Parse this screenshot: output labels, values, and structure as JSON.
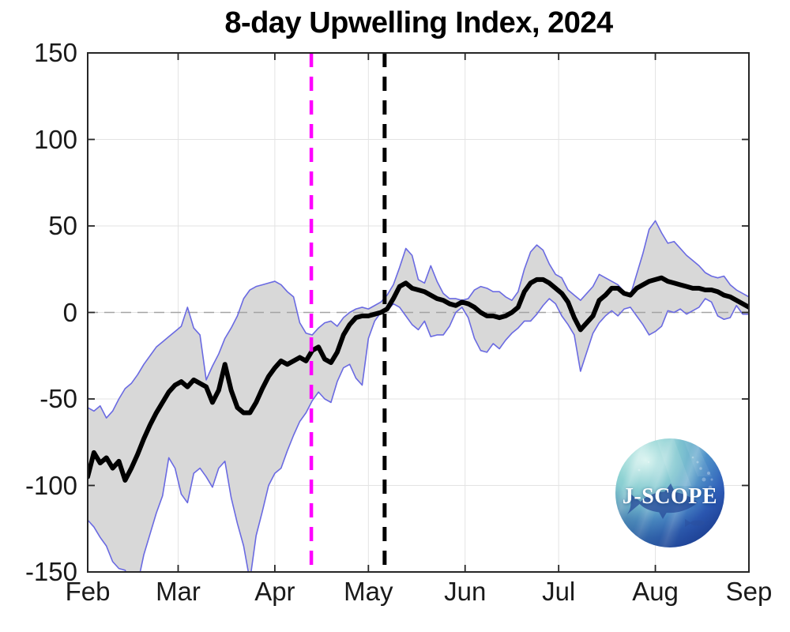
{
  "title": "8-day Upwelling Index, 2024",
  "logo": {
    "text": "J-SCOPE"
  },
  "axes": {
    "ylim": [
      -150,
      150
    ],
    "yticks": [
      150,
      100,
      50,
      0,
      -50,
      -100,
      -150
    ],
    "ytick_labels": [
      "150",
      "100",
      "50",
      "0",
      "-50",
      "-100",
      "-150"
    ],
    "xtick_labels": [
      "Feb",
      "Mar",
      "Apr",
      "May",
      "Jun",
      "Jul",
      "Aug",
      "Sep"
    ],
    "xtick_days": [
      0,
      29,
      60,
      90,
      121,
      151,
      182,
      212
    ]
  },
  "chart_data": {
    "type": "line",
    "title": "8-day Upwelling Index, 2024",
    "xlabel": "",
    "ylabel": "",
    "x_unit": "days since Feb 1, 2024",
    "x_start_day": 0,
    "x_step_days": 2,
    "x_range_days": [
      0,
      212
    ],
    "ylim": [
      -150,
      150
    ],
    "grid": true,
    "band_fill_color": "#d8d8d8",
    "series": [
      {
        "name": "ensemble-mean",
        "color": "#000000",
        "width": 6,
        "values": [
          -95,
          -81,
          -87,
          -84,
          -90,
          -86,
          -97,
          -90,
          -82,
          -73,
          -65,
          -58,
          -52,
          -46,
          -42,
          -40,
          -43,
          -39,
          -41,
          -43,
          -52,
          -45,
          -30,
          -45,
          -55,
          -58,
          -58,
          -52,
          -44,
          -37,
          -32,
          -28,
          -30,
          -28,
          -26,
          -28,
          -22,
          -20,
          -27,
          -29,
          -23,
          -13,
          -7,
          -3,
          -2,
          -2,
          -1,
          0,
          2,
          8,
          15,
          17,
          14,
          13,
          12,
          10,
          8,
          7,
          5,
          4,
          6,
          5,
          3,
          0,
          -2,
          -2,
          -3,
          -2,
          0,
          3,
          12,
          17,
          19,
          19,
          17,
          14,
          11,
          6,
          -3,
          -10,
          -6,
          -2,
          7,
          10,
          14,
          14,
          11,
          10,
          14,
          16,
          18,
          19,
          20,
          18,
          17,
          16,
          15,
          14,
          14,
          13,
          13,
          12,
          10,
          9,
          7,
          5,
          3
        ]
      },
      {
        "name": "envelope-upper",
        "color": "#6a6ae2",
        "width": 1.6,
        "values": [
          -55,
          -57,
          -54,
          -61,
          -57,
          -50,
          -44,
          -41,
          -36,
          -30,
          -25,
          -20,
          -17,
          -14,
          -11,
          -8,
          3,
          -9,
          -13,
          -39,
          -31,
          -24,
          -15,
          -9,
          -2,
          8,
          13,
          15,
          16,
          17,
          18,
          16,
          12,
          9,
          -6,
          -12,
          -13,
          -9,
          -6,
          -5,
          -8,
          -3,
          0,
          2,
          3,
          2,
          4,
          6,
          10,
          16,
          26,
          37,
          33,
          19,
          17,
          27,
          18,
          11,
          8,
          8,
          7,
          8,
          13,
          15,
          14,
          12,
          12,
          9,
          7,
          12,
          25,
          35,
          39,
          36,
          28,
          22,
          20,
          13,
          10,
          7,
          11,
          15,
          22,
          20,
          18,
          16,
          12,
          10,
          22,
          34,
          48,
          53,
          46,
          40,
          41,
          37,
          33,
          30,
          27,
          23,
          21,
          20,
          21,
          16,
          13,
          11,
          9
        ]
      },
      {
        "name": "envelope-lower",
        "color": "#6a6ae2",
        "width": 1.6,
        "values": [
          -120,
          -124,
          -130,
          -135,
          -144,
          -148,
          -149,
          -158,
          -157,
          -140,
          -128,
          -116,
          -106,
          -84,
          -90,
          -105,
          -110,
          -93,
          -90,
          -95,
          -101,
          -90,
          -86,
          -107,
          -122,
          -135,
          -155,
          -129,
          -115,
          -100,
          -93,
          -90,
          -80,
          -71,
          -63,
          -58,
          -51,
          -46,
          -50,
          -52,
          -40,
          -32,
          -30,
          -38,
          -42,
          -15,
          -5,
          0,
          1,
          5,
          3,
          -2,
          -7,
          -10,
          -5,
          -14,
          -13,
          -13,
          -8,
          0,
          3,
          -3,
          -15,
          -22,
          -23,
          -18,
          -21,
          -16,
          -12,
          -9,
          -5,
          -5,
          -1,
          4,
          8,
          5,
          -2,
          -7,
          -13,
          -34,
          -23,
          -12,
          -6,
          -2,
          1,
          -2,
          2,
          3,
          -2,
          -7,
          -13,
          -11,
          -8,
          1,
          0,
          2,
          -1,
          1,
          3,
          8,
          6,
          -2,
          -4,
          -3,
          4,
          -1,
          -1
        ]
      }
    ],
    "hlines": [
      {
        "y": 0,
        "style": "dashed",
        "color": "#a3a3a3"
      }
    ],
    "vlines": [
      {
        "name": "magenta-dashed-marker",
        "day": 71.7,
        "style": "dashed",
        "color": "#ff00ff",
        "width": 4.5
      },
      {
        "name": "black-dashed-marker",
        "day": 95.2,
        "style": "dashed",
        "color": "#000000",
        "width": 5
      }
    ],
    "legend": []
  },
  "style": {
    "axis_color": "#262626",
    "grid_color": "#e3e3e3",
    "background": "#ffffff"
  }
}
